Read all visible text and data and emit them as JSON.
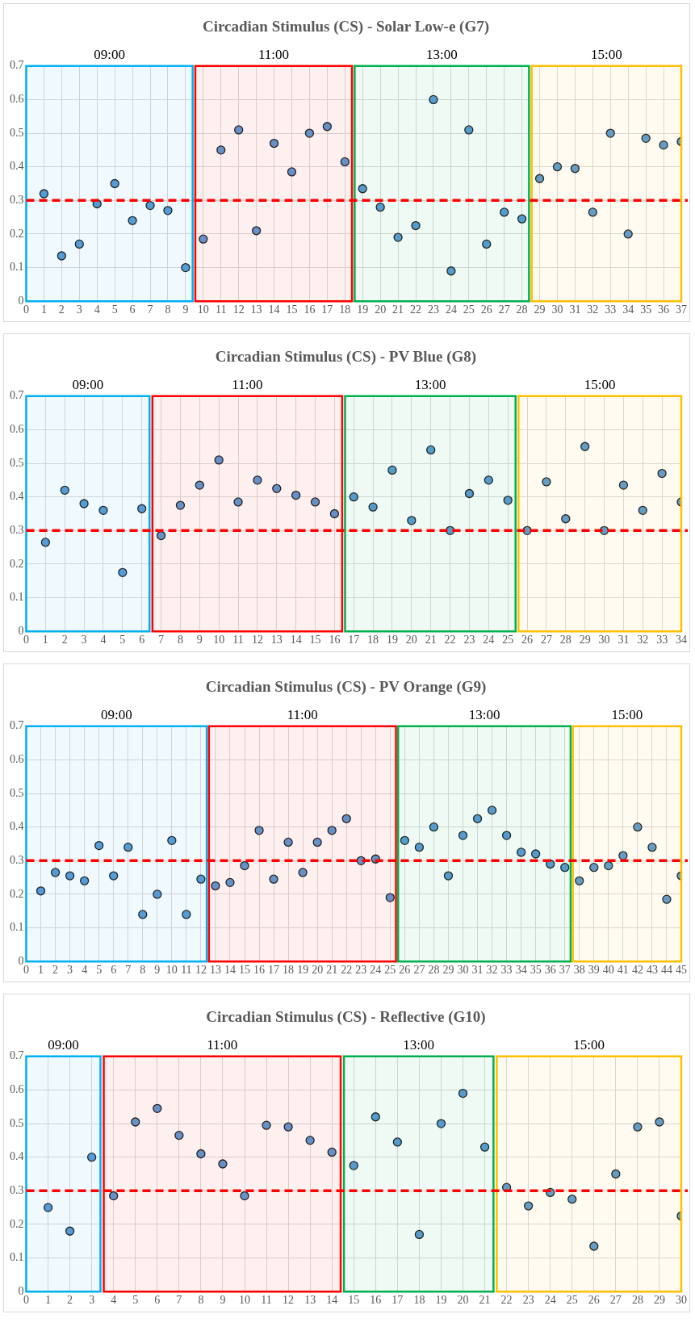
{
  "chart_data": [
    {
      "type": "scatter",
      "title": "Circadian Stimulus (CS) - Solar Low-e (G7)",
      "x": [
        1,
        2,
        3,
        4,
        5,
        6,
        7,
        8,
        9,
        10,
        11,
        12,
        13,
        14,
        15,
        16,
        17,
        18,
        19,
        20,
        21,
        22,
        23,
        24,
        25,
        26,
        27,
        28,
        29,
        30,
        31,
        32,
        33,
        34,
        35,
        36,
        37
      ],
      "series": [
        {
          "color": "#5b9bd5",
          "values": [
            0.32,
            0.135,
            0.17,
            0.29,
            0.35,
            0.24,
            0.285,
            0.27,
            0.1,
            0.185,
            0.45,
            0.51,
            0.21,
            0.47,
            0.385,
            0.5,
            0.52,
            0.415,
            0.335,
            0.28,
            0.19,
            0.225,
            0.6,
            0.09,
            0.51,
            0.17,
            0.265,
            0.245,
            0.365,
            0.4,
            0.395,
            0.265,
            0.5,
            0.2,
            0.485,
            0.465,
            0.475
          ]
        }
      ],
      "xlim": [
        0,
        37
      ],
      "xticks": [
        0,
        1,
        2,
        3,
        4,
        5,
        6,
        7,
        8,
        9,
        10,
        11,
        12,
        13,
        14,
        15,
        16,
        17,
        18,
        19,
        20,
        21,
        22,
        23,
        24,
        25,
        26,
        27,
        28,
        29,
        30,
        31,
        32,
        33,
        34,
        35,
        36,
        37
      ],
      "ylim": [
        0,
        0.7
      ],
      "yticks": [
        0,
        0.1,
        0.2,
        0.3,
        0.4,
        0.5,
        0.6,
        0.7
      ],
      "grid": true,
      "marker": "circle",
      "legend": false,
      "ref_lines": [
        {
          "axis": "y",
          "value": 0.3,
          "color": "#ff0000",
          "line_style": "dashed"
        }
      ],
      "bands": [
        {
          "axis": "x",
          "from": 0,
          "to": 9.4,
          "label": "09:00",
          "color": "#00b0f0"
        },
        {
          "axis": "x",
          "from": 9.55,
          "to": 18.4,
          "label": "11:00",
          "color": "#ff0000"
        },
        {
          "axis": "x",
          "from": 18.55,
          "to": 28.4,
          "label": "13:00",
          "color": "#00b050"
        },
        {
          "axis": "x",
          "from": 28.55,
          "to": 37,
          "label": "15:00",
          "color": "#ffc000"
        }
      ]
    },
    {
      "type": "scatter",
      "title": "Circadian Stimulus (CS) - PV Blue (G8)",
      "x": [
        1,
        2,
        3,
        4,
        5,
        6,
        7,
        8,
        9,
        10,
        11,
        12,
        13,
        14,
        15,
        16,
        17,
        18,
        19,
        20,
        21,
        22,
        23,
        24,
        25,
        26,
        27,
        28,
        29,
        30,
        31,
        32,
        33,
        34
      ],
      "series": [
        {
          "color": "#5b9bd5",
          "values": [
            0.265,
            0.42,
            0.38,
            0.36,
            0.175,
            0.365,
            0.285,
            0.375,
            0.435,
            0.51,
            0.385,
            0.45,
            0.425,
            0.405,
            0.385,
            0.35,
            0.4,
            0.37,
            0.48,
            0.33,
            0.54,
            0.3,
            0.41,
            0.45,
            0.39,
            0.3,
            0.445,
            0.335,
            0.55,
            0.3,
            0.435,
            0.36,
            0.47,
            0.385
          ]
        }
      ],
      "xlim": [
        0,
        34
      ],
      "xticks": [
        0,
        1,
        2,
        3,
        4,
        5,
        6,
        7,
        8,
        9,
        10,
        11,
        12,
        13,
        14,
        15,
        16,
        17,
        18,
        19,
        20,
        21,
        22,
        23,
        24,
        25,
        26,
        27,
        28,
        29,
        30,
        31,
        32,
        33,
        34
      ],
      "ylim": [
        0,
        0.7
      ],
      "yticks": [
        0,
        0.1,
        0.2,
        0.3,
        0.4,
        0.5,
        0.6,
        0.7
      ],
      "grid": true,
      "marker": "circle",
      "legend": false,
      "ref_lines": [
        {
          "axis": "y",
          "value": 0.3,
          "color": "#ff0000",
          "line_style": "dashed"
        }
      ],
      "bands": [
        {
          "axis": "x",
          "from": 0,
          "to": 6.4,
          "label": "09:00",
          "color": "#00b0f0"
        },
        {
          "axis": "x",
          "from": 6.55,
          "to": 16.4,
          "label": "11:00",
          "color": "#ff0000"
        },
        {
          "axis": "x",
          "from": 16.55,
          "to": 25.4,
          "label": "13:00",
          "color": "#00b050"
        },
        {
          "axis": "x",
          "from": 25.55,
          "to": 34,
          "label": "15:00",
          "color": "#ffc000"
        }
      ]
    },
    {
      "type": "scatter",
      "title": "Circadian Stimulus (CS) - PV Orange (G9)",
      "x": [
        1,
        2,
        3,
        4,
        5,
        6,
        7,
        8,
        9,
        10,
        11,
        12,
        13,
        14,
        15,
        16,
        17,
        18,
        19,
        20,
        21,
        22,
        23,
        24,
        25,
        26,
        27,
        28,
        29,
        30,
        31,
        32,
        33,
        34,
        35,
        36,
        37,
        38,
        39,
        40,
        41,
        42,
        43,
        44,
        45
      ],
      "series": [
        {
          "color": "#5b9bd5",
          "values": [
            0.21,
            0.265,
            0.255,
            0.24,
            0.345,
            0.255,
            0.34,
            0.14,
            0.2,
            0.36,
            0.14,
            0.245,
            0.225,
            0.235,
            0.285,
            0.39,
            0.245,
            0.355,
            0.265,
            0.355,
            0.39,
            0.425,
            0.3,
            0.305,
            0.19,
            0.36,
            0.34,
            0.4,
            0.255,
            0.375,
            0.425,
            0.45,
            0.375,
            0.325,
            0.32,
            0.29,
            0.28,
            0.24,
            0.28,
            0.285,
            0.315,
            0.4,
            0.34,
            0.185,
            0.255
          ]
        }
      ],
      "xlim": [
        0,
        45
      ],
      "xticks": [
        0,
        1,
        2,
        3,
        4,
        5,
        6,
        7,
        8,
        9,
        10,
        11,
        12,
        13,
        14,
        15,
        16,
        17,
        18,
        19,
        20,
        21,
        22,
        23,
        24,
        25,
        26,
        27,
        28,
        29,
        30,
        31,
        32,
        33,
        34,
        35,
        36,
        37,
        38,
        39,
        40,
        41,
        42,
        43,
        44,
        45
      ],
      "ylim": [
        0,
        0.7
      ],
      "yticks": [
        0,
        0.1,
        0.2,
        0.3,
        0.4,
        0.5,
        0.6,
        0.7
      ],
      "grid": true,
      "marker": "circle",
      "legend": false,
      "ref_lines": [
        {
          "axis": "y",
          "value": 0.3,
          "color": "#ff0000",
          "line_style": "dashed"
        }
      ],
      "bands": [
        {
          "axis": "x",
          "from": 0,
          "to": 12.4,
          "label": "09:00",
          "color": "#00b0f0"
        },
        {
          "axis": "x",
          "from": 12.55,
          "to": 25.4,
          "label": "11:00",
          "color": "#ff0000"
        },
        {
          "axis": "x",
          "from": 25.55,
          "to": 37.4,
          "label": "13:00",
          "color": "#00b050"
        },
        {
          "axis": "x",
          "from": 37.55,
          "to": 45,
          "label": "15:00",
          "color": "#ffc000"
        }
      ]
    },
    {
      "type": "scatter",
      "title": "Circadian Stimulus (CS) - Reflective (G10)",
      "x": [
        1,
        2,
        3,
        4,
        5,
        6,
        7,
        8,
        9,
        10,
        11,
        12,
        13,
        14,
        15,
        16,
        17,
        18,
        19,
        20,
        21,
        22,
        23,
        24,
        25,
        26,
        27,
        28,
        29,
        30
      ],
      "series": [
        {
          "color": "#5b9bd5",
          "values": [
            0.25,
            0.18,
            0.4,
            0.285,
            0.505,
            0.545,
            0.465,
            0.41,
            0.38,
            0.285,
            0.495,
            0.49,
            0.45,
            0.415,
            0.375,
            0.52,
            0.445,
            0.17,
            0.5,
            0.59,
            0.43,
            0.31,
            0.255,
            0.295,
            0.275,
            0.135,
            0.35,
            0.49,
            0.505,
            0.225
          ]
        }
      ],
      "xlim": [
        0,
        30
      ],
      "xticks": [
        0,
        1,
        2,
        3,
        4,
        5,
        6,
        7,
        8,
        9,
        10,
        11,
        12,
        13,
        14,
        15,
        16,
        17,
        18,
        19,
        20,
        21,
        22,
        23,
        24,
        25,
        26,
        27,
        28,
        29,
        30
      ],
      "ylim": [
        0,
        0.7
      ],
      "yticks": [
        0,
        0.1,
        0.2,
        0.3,
        0.4,
        0.5,
        0.6,
        0.7
      ],
      "grid": true,
      "marker": "circle",
      "legend": false,
      "ref_lines": [
        {
          "axis": "y",
          "value": 0.3,
          "color": "#ff0000",
          "line_style": "dashed"
        }
      ],
      "bands": [
        {
          "axis": "x",
          "from": 0,
          "to": 3.4,
          "label": "09:00",
          "color": "#00b0f0"
        },
        {
          "axis": "x",
          "from": 3.55,
          "to": 14.4,
          "label": "11:00",
          "color": "#ff0000"
        },
        {
          "axis": "x",
          "from": 14.55,
          "to": 21.4,
          "label": "13:00",
          "color": "#00b050"
        },
        {
          "axis": "x",
          "from": 21.55,
          "to": 30,
          "label": "15:00",
          "color": "#ffc000"
        }
      ]
    }
  ]
}
